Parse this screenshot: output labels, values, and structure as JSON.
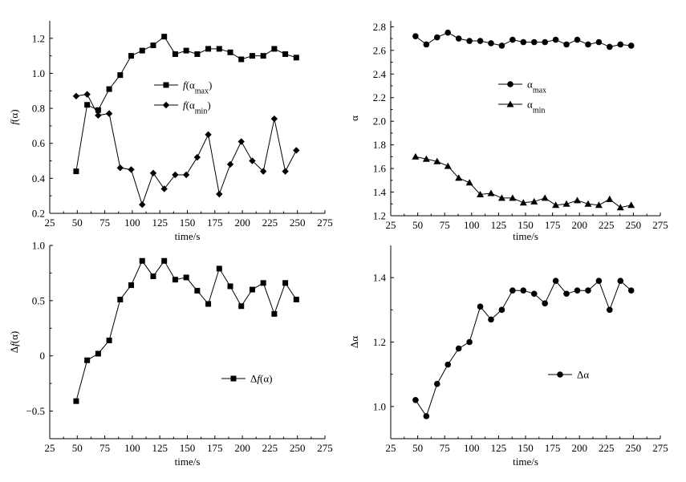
{
  "chart_data": [
    {
      "id": "tl",
      "type": "line",
      "xlabel": "time/s",
      "ylabel": "f(α)",
      "xlim": [
        25,
        275
      ],
      "ylim": [
        0.2,
        1.3
      ],
      "xticks": [
        25,
        50,
        75,
        100,
        125,
        150,
        175,
        200,
        225,
        250,
        275
      ],
      "yticks": [
        0.2,
        0.4,
        0.6,
        0.8,
        1.0,
        1.2
      ],
      "ytick_labels": [
        "0.2",
        "0.4",
        "0.6",
        "0.8",
        "1.0",
        "1.2"
      ],
      "legend_position": "center",
      "series": [
        {
          "name": "f(α_max)",
          "legend_base": "f(α",
          "legend_sub": "max",
          "legend_tail": ")",
          "marker": "square",
          "x": [
            49,
            59,
            69,
            79,
            89,
            99,
            109,
            119,
            129,
            139,
            149,
            159,
            169,
            179,
            189,
            199,
            209,
            219,
            229,
            239,
            249
          ],
          "y": [
            0.44,
            0.82,
            0.79,
            0.91,
            0.99,
            1.1,
            1.13,
            1.16,
            1.21,
            1.11,
            1.13,
            1.11,
            1.14,
            1.14,
            1.12,
            1.08,
            1.1,
            1.1,
            1.14,
            1.11,
            1.09
          ]
        },
        {
          "name": "f(α_min)",
          "legend_base": "f(α",
          "legend_sub": "min",
          "legend_tail": ")",
          "marker": "diamond",
          "x": [
            49,
            59,
            69,
            79,
            89,
            99,
            109,
            119,
            129,
            139,
            149,
            159,
            169,
            179,
            189,
            199,
            209,
            219,
            229,
            239,
            249
          ],
          "y": [
            0.87,
            0.88,
            0.76,
            0.77,
            0.46,
            0.45,
            0.25,
            0.43,
            0.34,
            0.42,
            0.42,
            0.52,
            0.65,
            0.31,
            0.48,
            0.61,
            0.5,
            0.44,
            0.74,
            0.44,
            0.56
          ]
        }
      ]
    },
    {
      "id": "tr",
      "type": "line",
      "xlabel": "time/s",
      "ylabel": "α",
      "xlim": [
        25,
        275
      ],
      "ylim": [
        1.2,
        2.85
      ],
      "xticks": [
        25,
        50,
        75,
        100,
        125,
        150,
        175,
        200,
        225,
        250,
        275
      ],
      "yticks": [
        1.2,
        1.4,
        1.6,
        1.8,
        2.0,
        2.2,
        2.4,
        2.6,
        2.8
      ],
      "ytick_labels": [
        "1.2",
        "1.4",
        "1.6",
        "1.8",
        "2.0",
        "2.2",
        "2.4",
        "2.6",
        "2.8"
      ],
      "legend_position": "center",
      "series": [
        {
          "name": "α_max",
          "legend_base": "α",
          "legend_sub": "max",
          "legend_tail": "",
          "marker": "circle",
          "x": [
            48,
            58,
            68,
            78,
            88,
            98,
            108,
            118,
            128,
            138,
            148,
            158,
            168,
            178,
            188,
            198,
            208,
            218,
            228,
            238,
            248
          ],
          "y": [
            2.72,
            2.65,
            2.71,
            2.75,
            2.7,
            2.68,
            2.68,
            2.66,
            2.64,
            2.69,
            2.67,
            2.67,
            2.67,
            2.69,
            2.65,
            2.69,
            2.65,
            2.67,
            2.63,
            2.65,
            2.64
          ]
        },
        {
          "name": "α_min",
          "legend_base": "α",
          "legend_sub": "min",
          "legend_tail": "",
          "marker": "triangle",
          "x": [
            48,
            58,
            68,
            78,
            88,
            98,
            108,
            118,
            128,
            138,
            148,
            158,
            168,
            178,
            188,
            198,
            208,
            218,
            228,
            238,
            248
          ],
          "y": [
            1.7,
            1.68,
            1.66,
            1.62,
            1.52,
            1.48,
            1.38,
            1.39,
            1.35,
            1.35,
            1.31,
            1.32,
            1.35,
            1.29,
            1.3,
            1.33,
            1.3,
            1.29,
            1.34,
            1.27,
            1.29
          ]
        }
      ]
    },
    {
      "id": "bl",
      "type": "line",
      "xlabel": "time/s",
      "ylabel": "Δf(α)",
      "xlim": [
        25,
        275
      ],
      "ylim": [
        -0.75,
        1.0
      ],
      "xticks": [
        25,
        50,
        75,
        100,
        125,
        150,
        175,
        200,
        225,
        250,
        275
      ],
      "yticks": [
        -0.5,
        0,
        0.5,
        1.0
      ],
      "ytick_labels": [
        "−0.5",
        "0",
        "0.5",
        "1.0"
      ],
      "legend_position": "lower-right",
      "series": [
        {
          "name": "Δf(α)",
          "legend_base": "Δf(α)",
          "legend_sub": "",
          "legend_tail": "",
          "marker": "square",
          "x": [
            49,
            59,
            69,
            79,
            89,
            99,
            109,
            119,
            129,
            139,
            149,
            159,
            169,
            179,
            189,
            199,
            209,
            219,
            229,
            239,
            249
          ],
          "y": [
            -0.41,
            -0.04,
            0.02,
            0.14,
            0.51,
            0.64,
            0.86,
            0.72,
            0.86,
            0.69,
            0.71,
            0.59,
            0.47,
            0.79,
            0.63,
            0.45,
            0.6,
            0.66,
            0.38,
            0.66,
            0.51
          ]
        }
      ]
    },
    {
      "id": "br",
      "type": "line",
      "xlabel": "time/s",
      "ylabel": "Δα",
      "xlim": [
        25,
        275
      ],
      "ylim": [
        0.9,
        1.5
      ],
      "xticks": [
        25,
        50,
        75,
        100,
        125,
        150,
        175,
        200,
        225,
        250,
        275
      ],
      "yticks": [
        1.0,
        1.2,
        1.4
      ],
      "ytick_labels": [
        "1.0",
        "1.2",
        "1.4"
      ],
      "legend_position": "lower-right",
      "series": [
        {
          "name": "Δα",
          "legend_base": "Δα",
          "legend_sub": "",
          "legend_tail": "",
          "marker": "circle",
          "x": [
            48,
            58,
            68,
            78,
            88,
            98,
            108,
            118,
            128,
            138,
            148,
            158,
            168,
            178,
            188,
            198,
            208,
            218,
            228,
            238,
            248
          ],
          "y": [
            1.02,
            0.97,
            1.07,
            1.13,
            1.18,
            1.2,
            1.31,
            1.27,
            1.3,
            1.36,
            1.36,
            1.35,
            1.32,
            1.39,
            1.35,
            1.36,
            1.36,
            1.39,
            1.3,
            1.39,
            1.36
          ]
        }
      ]
    }
  ]
}
